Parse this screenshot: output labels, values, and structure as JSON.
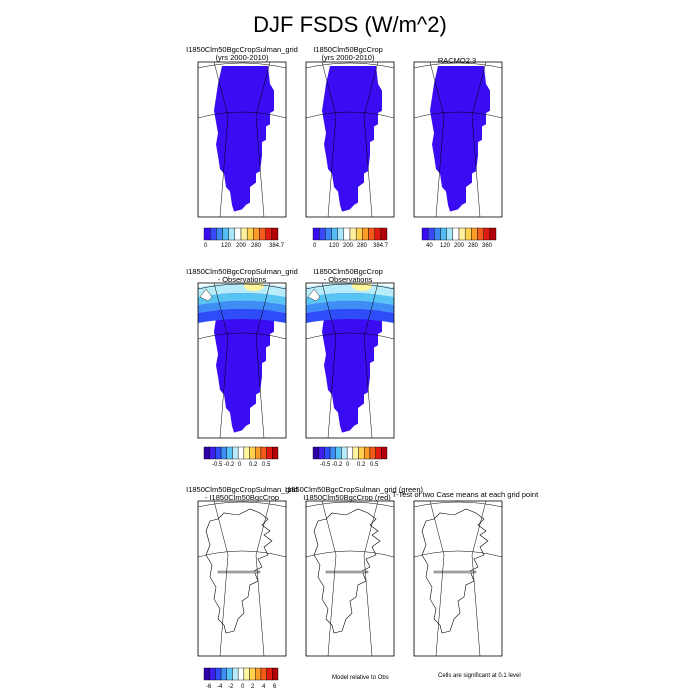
{
  "title": "DJF FSDS (W/m^2)",
  "row1": {
    "panels": [
      {
        "line1": "I1850Clm50BgcCropSulman_grid",
        "line2": "(yrs 2000-2010)"
      },
      {
        "line1": "I1850Clm50BgcCrop",
        "line2": "(yrs 2000-2010)"
      },
      {
        "line1": "RACMO2.3",
        "line2": ""
      }
    ],
    "colorbars": [
      {
        "labels": [
          "0",
          "120",
          "200",
          "280",
          "384.7"
        ]
      },
      {
        "labels": [
          "0",
          "120",
          "200",
          "280",
          "384.7"
        ]
      },
      {
        "labels": [
          "40",
          "120",
          "200",
          "280",
          "360"
        ]
      }
    ]
  },
  "row2": {
    "panels": [
      {
        "line1": "I1850Clm50BgcCropSulman_grid",
        "line2": "- Observations"
      },
      {
        "line1": "I1850Clm50BgcCrop",
        "line2": "- Observations"
      }
    ],
    "colorbars": [
      {
        "labels": [
          "-0.5",
          "-0.2",
          "0",
          "0.2",
          "0.5"
        ]
      },
      {
        "labels": [
          "-0.5",
          "-0.2",
          "0",
          "0.2",
          "0.5"
        ]
      }
    ]
  },
  "row3": {
    "panels": [
      {
        "line1": "I1850Clm50BgcCropSulman_grid",
        "line2": "- I1850Clm50BgcCrop"
      },
      {
        "line1": "I1850Clm50BgcCropSulman_grid (green)",
        "line2": "I1850Clm50BgcCrop (red)"
      },
      {
        "line1": "T-Test of two Case means at each grid point",
        "line2": ""
      }
    ],
    "colorbar": {
      "labels": [
        "-6",
        "-4",
        "-2",
        "0",
        "2",
        "4",
        "6"
      ]
    },
    "footer_mid": "Model relative to Obs",
    "footer_right": "Cells are significant at 0.1 level"
  },
  "colors": {
    "land_low": "#3a0cf4",
    "ocean": "#ffffff",
    "diff_palette": [
      "#2f00a8",
      "#3c1ef0",
      "#2e4cf8",
      "#3e8ef6",
      "#58c4f4",
      "#b8ecfa",
      "#ffffff",
      "#fff6a0",
      "#fdd14d",
      "#fb9b28",
      "#f45a1a",
      "#df1a10",
      "#b00008"
    ],
    "abs_palette": [
      "#3a0cf4",
      "#3a47f6",
      "#3d86f6",
      "#54bef4",
      "#a8e6fa",
      "#ffffff",
      "#fff0a0",
      "#fdd14d",
      "#fb9b28",
      "#f45a1a",
      "#df1a10",
      "#b00008"
    ]
  }
}
